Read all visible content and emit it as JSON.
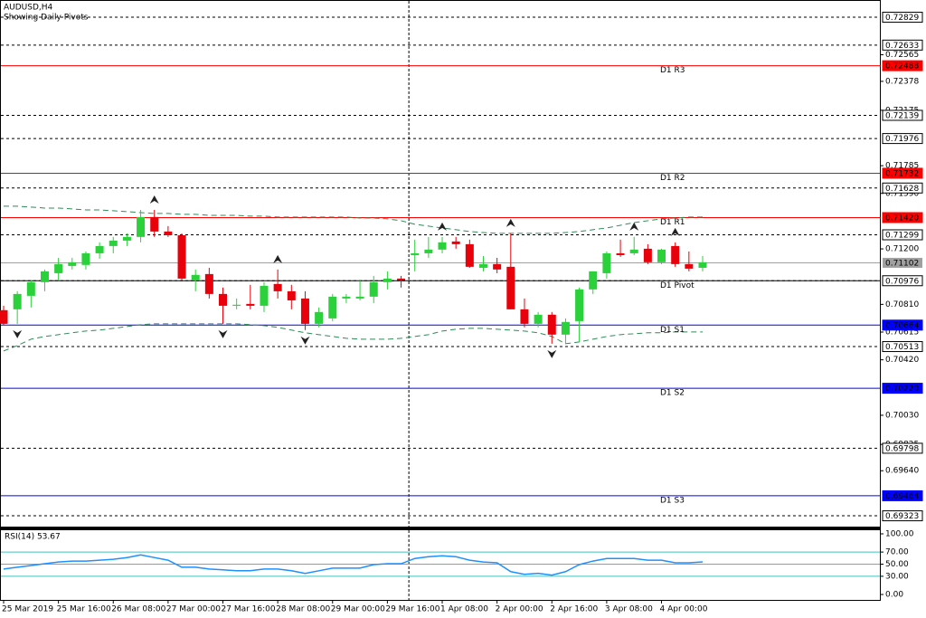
{
  "chart_data": {
    "type": "candlestick",
    "title": "AUDUSD,H4",
    "subtitle": "Showing Daily Pivots",
    "categories": [
      "25 Mar 2019",
      null,
      null,
      null,
      "25 Mar 16:00",
      null,
      null,
      null,
      "26 Mar 08:00",
      null,
      null,
      null,
      "27 Mar 00:00",
      null,
      null,
      null,
      "27 Mar 16:00",
      null,
      null,
      null,
      "28 Mar 08:00",
      null,
      null,
      null,
      "29 Mar 00:00",
      null,
      null,
      null,
      "29 Mar 16:00",
      null,
      null,
      null,
      "1 Apr 08:00",
      null,
      null,
      null,
      "2 Apr 00:00",
      null,
      null,
      null,
      "2 Apr 16:00",
      null,
      null,
      null,
      "3 Apr 08:00",
      null,
      null,
      null,
      "4 Apr 00:00",
      null,
      null,
      null
    ],
    "open": [
      0.70769,
      0.70775,
      0.7087,
      0.70966,
      0.71029,
      0.7108,
      0.71087,
      0.71169,
      0.7122,
      0.71258,
      0.71284,
      0.71424,
      0.71322,
      0.71296,
      0.70978,
      0.71023,
      0.70883,
      0.708,
      0.70813,
      0.708,
      0.70953,
      0.70902,
      0.70851,
      0.70673,
      0.70711,
      0.70851,
      0.70851,
      0.70864,
      0.70966,
      0.70991,
      0.71156,
      0.71169,
      0.71195,
      0.71252,
      0.71233,
      0.71067,
      0.71093,
      0.71074,
      0.70775,
      0.70673,
      0.70737,
      0.70597,
      0.70692,
      0.70915,
      0.71029,
      0.71169,
      0.71169,
      0.71201,
      0.71106,
      0.7122,
      0.71093,
      0.71067
    ],
    "high": [
      0.708,
      0.70902,
      0.70978,
      0.71055,
      0.71137,
      0.71137,
      0.71182,
      0.71246,
      0.71284,
      0.71309,
      0.71474,
      0.71474,
      0.7136,
      0.71309,
      0.71055,
      0.71067,
      0.70928,
      0.70851,
      0.70947,
      0.70966,
      0.71055,
      0.70947,
      0.70902,
      0.70788,
      0.70883,
      0.70883,
      0.70978,
      0.7101,
      0.71042,
      0.7101,
      0.71265,
      0.71284,
      0.71284,
      0.71284,
      0.71265,
      0.7115,
      0.71137,
      0.71309,
      0.70851,
      0.70756,
      0.70756,
      0.70711,
      0.70928,
      0.71042,
      0.71182,
      0.71265,
      0.71284,
      0.71233,
      0.71201,
      0.71246,
      0.71182,
      0.7115
    ],
    "low": [
      0.7066,
      0.70673,
      0.70788,
      0.70902,
      0.70978,
      0.71055,
      0.71055,
      0.71131,
      0.71169,
      0.7122,
      0.71246,
      0.71284,
      0.71284,
      0.70978,
      0.70902,
      0.70851,
      0.70673,
      0.70775,
      0.70775,
      0.70756,
      0.70851,
      0.70775,
      0.70629,
      0.70648,
      0.70692,
      0.70819,
      0.70838,
      0.70819,
      0.70915,
      0.70928,
      0.71042,
      0.71137,
      0.71169,
      0.71201,
      0.71067,
      0.71042,
      0.71029,
      0.70775,
      0.70648,
      0.70648,
      0.70533,
      0.70533,
      0.70546,
      0.70883,
      0.70991,
      0.71144,
      0.71156,
      0.71093,
      0.71093,
      0.71074,
      0.71042,
      0.71042
    ],
    "close": [
      0.70673,
      0.70883,
      0.70966,
      0.71042,
      0.71093,
      0.71106,
      0.71169,
      0.7122,
      0.71258,
      0.71284,
      0.71424,
      0.71322,
      0.71296,
      0.70991,
      0.71017,
      0.70883,
      0.708,
      0.70807,
      0.708,
      0.7094,
      0.70902,
      0.70838,
      0.70673,
      0.70756,
      0.70864,
      0.70864,
      0.70864,
      0.70966,
      0.70991,
      0.70978,
      0.71169,
      0.71195,
      0.71246,
      0.71233,
      0.71074,
      0.71093,
      0.71055,
      0.70775,
      0.70673,
      0.70737,
      0.70597,
      0.70686,
      0.70915,
      0.71042,
      0.71169,
      0.71156,
      0.71195,
      0.71106,
      0.71195,
      0.71093,
      0.71061,
      0.71106
    ],
    "up_color": "#2bd13b",
    "down_color": "#e8000b",
    "ylim": [
      0.69247,
      0.72931
    ],
    "yticks": [
      0.72565,
      0.72378,
      0.72175,
      0.71785,
      {
        "value": 0.7159,
        "label": "0.71590"
      },
      {
        "value": 0.712,
        "label": "0.71200"
      },
      {
        "value": 0.7081,
        "label": "0.70810"
      },
      0.70615,
      {
        "value": 0.7042,
        "label": "0.70420"
      },
      {
        "value": 0.7003,
        "label": "0.70030"
      },
      0.69825,
      {
        "value": 0.6964,
        "label": "0.69640"
      }
    ],
    "swing_levels": [
      0.72829,
      0.72633,
      0.72139,
      0.71976,
      0.71628,
      0.71299,
      0.70976,
      0.70513,
      0.69798,
      0.69323
    ],
    "pivot_levels": [
      {
        "name": "D1 R3",
        "value": 0.72488,
        "label": "0.72488",
        "color": "#ff0000"
      },
      {
        "name": "D1 R2",
        "value": 0.71732,
        "label": "0.71732",
        "color": "#ff0000"
      },
      {
        "name": "D1 R1",
        "value": 0.7142,
        "label": "0.71420",
        "color": "#ff0000"
      },
      {
        "name": "D1 Pivot",
        "value": 0.70976,
        "color": "#000000"
      },
      {
        "name": "D1 S1",
        "value": 0.70664,
        "label": "0.70664",
        "color": "#0000ff"
      },
      {
        "name": "D1 S2",
        "value": 0.7022,
        "label": "0.70220",
        "color": "#0000ff"
      },
      {
        "name": "D1 S3",
        "value": 0.69464,
        "label": "0.69464",
        "color": "#0000ff"
      }
    ],
    "current_price": {
      "value": 0.71102,
      "label": "0.71102",
      "color": "#a0a0a0"
    },
    "envelope": {
      "color": "#2e8b57",
      "upper": [
        0.715,
        0.715,
        0.71494,
        0.71487,
        0.71487,
        0.71481,
        0.71474,
        0.71474,
        0.71468,
        0.71462,
        0.71455,
        0.71449,
        0.71449,
        0.71443,
        0.71443,
        0.71436,
        0.71436,
        0.71436,
        0.7143,
        0.7143,
        0.71424,
        0.71424,
        0.71424,
        0.71424,
        0.71424,
        0.71424,
        0.71417,
        0.71417,
        0.71411,
        0.71398,
        0.71373,
        0.7136,
        0.71347,
        0.71335,
        0.71322,
        0.71315,
        0.71309,
        0.71309,
        0.71309,
        0.71309,
        0.71309,
        0.71315,
        0.71322,
        0.71335,
        0.71347,
        0.71366,
        0.71385,
        0.71398,
        0.71411,
        0.71417,
        0.71424,
        0.71424
      ],
      "lower": [
        0.70482,
        0.7052,
        0.70565,
        0.70584,
        0.70597,
        0.7061,
        0.70622,
        0.70629,
        0.70641,
        0.70654,
        0.70667,
        0.70673,
        0.70673,
        0.70673,
        0.70673,
        0.70673,
        0.70673,
        0.70673,
        0.70667,
        0.7066,
        0.70648,
        0.70629,
        0.7061,
        0.70597,
        0.70584,
        0.70571,
        0.70565,
        0.70565,
        0.70565,
        0.70571,
        0.70584,
        0.70597,
        0.70622,
        0.70635,
        0.70641,
        0.70641,
        0.70635,
        0.70629,
        0.70622,
        0.7061,
        0.70584,
        0.70533,
        0.70546,
        0.70565,
        0.70584,
        0.70597,
        0.70603,
        0.7061,
        0.7061,
        0.70616,
        0.70616,
        0.70616
      ]
    },
    "fractals": {
      "up": [
        11,
        20,
        32,
        37,
        46,
        49
      ],
      "down": [
        1,
        16,
        22,
        40
      ]
    },
    "separator": 30,
    "rsi": {
      "type": "line",
      "title": "RSI(14) 53.67",
      "color": "#1e90ff",
      "level_color": "#40c0c0",
      "values": [
        42.0,
        44.9,
        47.8,
        50.7,
        53.6,
        55.1,
        55.1,
        56.5,
        58.0,
        60.9,
        65.2,
        60.9,
        56.5,
        44.9,
        44.9,
        42.0,
        40.6,
        39.1,
        39.1,
        42.0,
        42.0,
        39.1,
        34.8,
        39.1,
        43.5,
        43.5,
        43.5,
        49.3,
        50.7,
        50.7,
        59.4,
        62.3,
        63.8,
        62.3,
        56.5,
        53.6,
        52.2,
        37.7,
        33.3,
        34.8,
        31.9,
        37.7,
        49.3,
        55.1,
        59.4,
        59.4,
        59.4,
        56.5,
        56.5,
        52.2,
        52.2,
        53.67
      ],
      "ylim": [
        0,
        100
      ],
      "yticks": [
        {
          "value": 100,
          "label": "100.00"
        },
        {
          "value": 70,
          "label": "70.00"
        },
        {
          "value": 50,
          "label": "50.00"
        },
        {
          "value": 30,
          "label": "30.00"
        },
        {
          "value": 0,
          "label": "0.00"
        }
      ],
      "levels": [
        70,
        50,
        30
      ]
    }
  }
}
